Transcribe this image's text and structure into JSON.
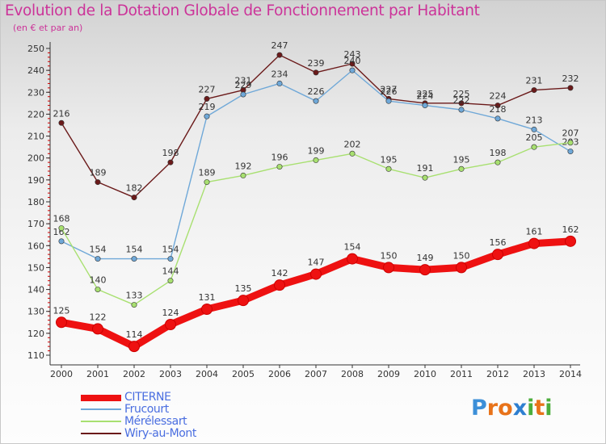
{
  "title": "Evolution de la Dotation Globale de Fonctionnement par Habitant",
  "subtitle": "(en € et par an)",
  "colors": {
    "title": "#cc3399",
    "axis": "#333333",
    "tick_marks": "#cc0000"
  },
  "logo": {
    "text": "Proxiti",
    "letter_colors": [
      "#3c8fd8",
      "#e8731a",
      "#e8731a",
      "#2e7fd0",
      "#4cae3c",
      "#e8731a",
      "#4cae3c"
    ]
  },
  "chart_data": {
    "type": "line",
    "title": "Evolution de la Dotation Globale de Fonctionnement par Habitant",
    "subtitle": "(en € et par an)",
    "xlabel": "",
    "ylabel": "",
    "x": [
      "2000",
      "2001",
      "2002",
      "2003",
      "2004",
      "2005",
      "2006",
      "2007",
      "2008",
      "2009",
      "2010",
      "2011",
      "2012",
      "2013",
      "2014"
    ],
    "ylim": [
      110,
      250
    ],
    "yticks": [
      110,
      120,
      130,
      140,
      150,
      160,
      170,
      180,
      190,
      200,
      210,
      220,
      230,
      240,
      250
    ],
    "grid": false,
    "legend_position": "bottom-left",
    "series": [
      {
        "name": "Wiry-au-Mont",
        "color": "#6b1a1a",
        "values": [
          216,
          189,
          182,
          198,
          227,
          231,
          247,
          239,
          243,
          227,
          225,
          225,
          224,
          231,
          232
        ]
      },
      {
        "name": "Frucourt",
        "color": "#6fa8d8",
        "values": [
          162,
          154,
          154,
          154,
          219,
          229,
          234,
          226,
          240,
          226,
          224,
          222,
          218,
          213,
          203
        ]
      },
      {
        "name": "Mérélessart",
        "color": "#a8e070",
        "values": [
          168,
          140,
          133,
          144,
          189,
          192,
          196,
          199,
          202,
          195,
          191,
          195,
          198,
          205,
          207
        ]
      },
      {
        "name": "CITERNE",
        "color": "#ee1111",
        "values": [
          125,
          122,
          114,
          124,
          131,
          135,
          142,
          147,
          154,
          150,
          149,
          150,
          156,
          161,
          162
        ]
      }
    ]
  }
}
